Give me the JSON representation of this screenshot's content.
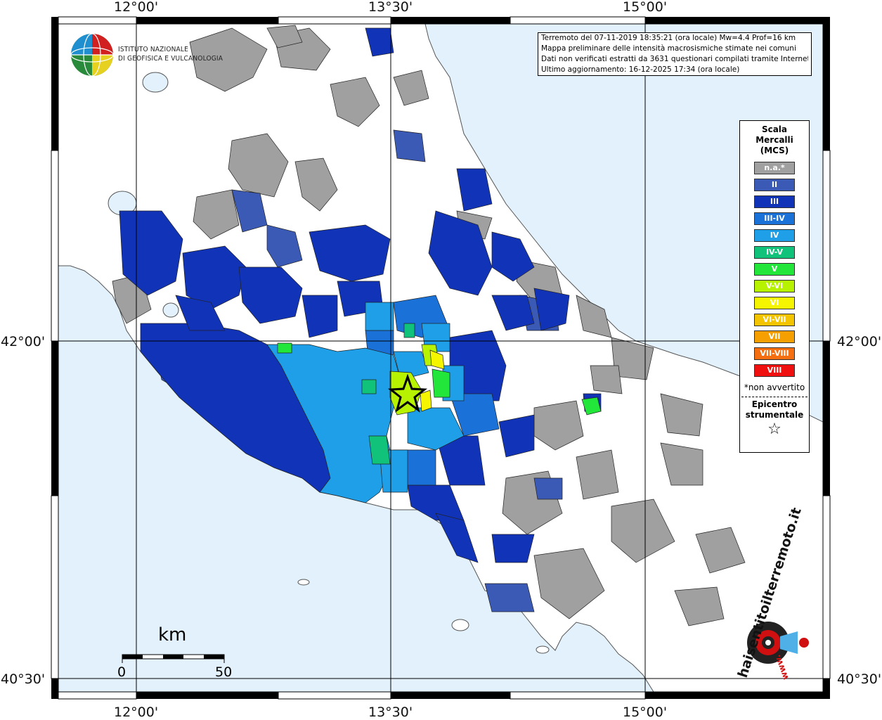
{
  "ticks": {
    "top": [
      "12°00'",
      "13°30'",
      "15°00'"
    ],
    "bottom": [
      "12°00'",
      "13°30'",
      "15°00'"
    ],
    "left": [
      "42°00'",
      "40°30'"
    ],
    "right": [
      "42°00'",
      "40°30'"
    ]
  },
  "institute": {
    "line1": "ISTITUTO NAZIONALE",
    "line2": "DI GEOFISICA E VULCANOLOGIA"
  },
  "info": {
    "line1": "Terremoto del 07-11-2019 18:35:21 (ora locale) Mw=4.4 Prof=16 km",
    "line2": "Mappa preliminare delle intensità macrosismiche stimate nei comuni",
    "line3": "Dati non verificati estratti da 3631 questionari compilati tramite Internet.",
    "line4": "Ultimo aggiornamento: 16-12-2025 17:34 (ora locale)"
  },
  "legend": {
    "title1": "Scala",
    "title2": "Mercalli",
    "title3": "(MCS)",
    "classes": [
      {
        "label": "n.a.*",
        "color": "#a0a0a0"
      },
      {
        "label": "II",
        "color": "#3b5ab5"
      },
      {
        "label": "III",
        "color": "#1133b8"
      },
      {
        "label": "III-IV",
        "color": "#1a72d8"
      },
      {
        "label": "IV",
        "color": "#1e9fe8"
      },
      {
        "label": "IV-V",
        "color": "#11c27a"
      },
      {
        "label": "V",
        "color": "#22e63a"
      },
      {
        "label": "V-VI",
        "color": "#b7f200"
      },
      {
        "label": "VI",
        "color": "#f5f500"
      },
      {
        "label": "VI-VII",
        "color": "#f5c400"
      },
      {
        "label": "VII",
        "color": "#f59f00"
      },
      {
        "label": "VII-VIII",
        "color": "#f56e10"
      },
      {
        "label": "VIII",
        "color": "#f01010"
      }
    ],
    "not_felt": "*non avvertito",
    "epicenter1": "Epicentro",
    "epicenter2": "strumentale",
    "star": "☆"
  },
  "scale": {
    "unit": "km",
    "min": "0",
    "max": "50"
  },
  "logo_text": "haisentitoilterremoto.it",
  "logo_text2": "www.",
  "colors": {
    "sea": "#e2f1fb",
    "land": "#ffffff",
    "grid": "#000000"
  }
}
